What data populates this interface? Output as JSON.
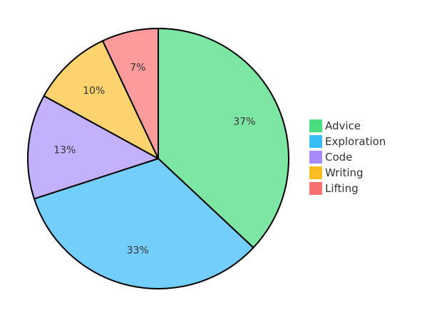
{
  "chart_data": {
    "type": "pie",
    "title": "",
    "legend_position": "right",
    "slices": [
      {
        "label": "Advice",
        "value": 37,
        "value_label": "37%",
        "fill": "#7ee6a4",
        "legend_color": "#4ade80"
      },
      {
        "label": "Exploration",
        "value": 33,
        "value_label": "33%",
        "fill": "#73cefb",
        "legend_color": "#38bdf8"
      },
      {
        "label": "Code",
        "value": 13,
        "value_label": "13%",
        "fill": "#c4b1fd",
        "legend_color": "#a78bfa"
      },
      {
        "label": "Writing",
        "value": 10,
        "value_label": "10%",
        "fill": "#fdd36f",
        "legend_color": "#fbbf24"
      },
      {
        "label": "Lifting",
        "value": 7,
        "value_label": "7%",
        "fill": "#fb9b9b",
        "legend_color": "#f87171"
      }
    ]
  }
}
